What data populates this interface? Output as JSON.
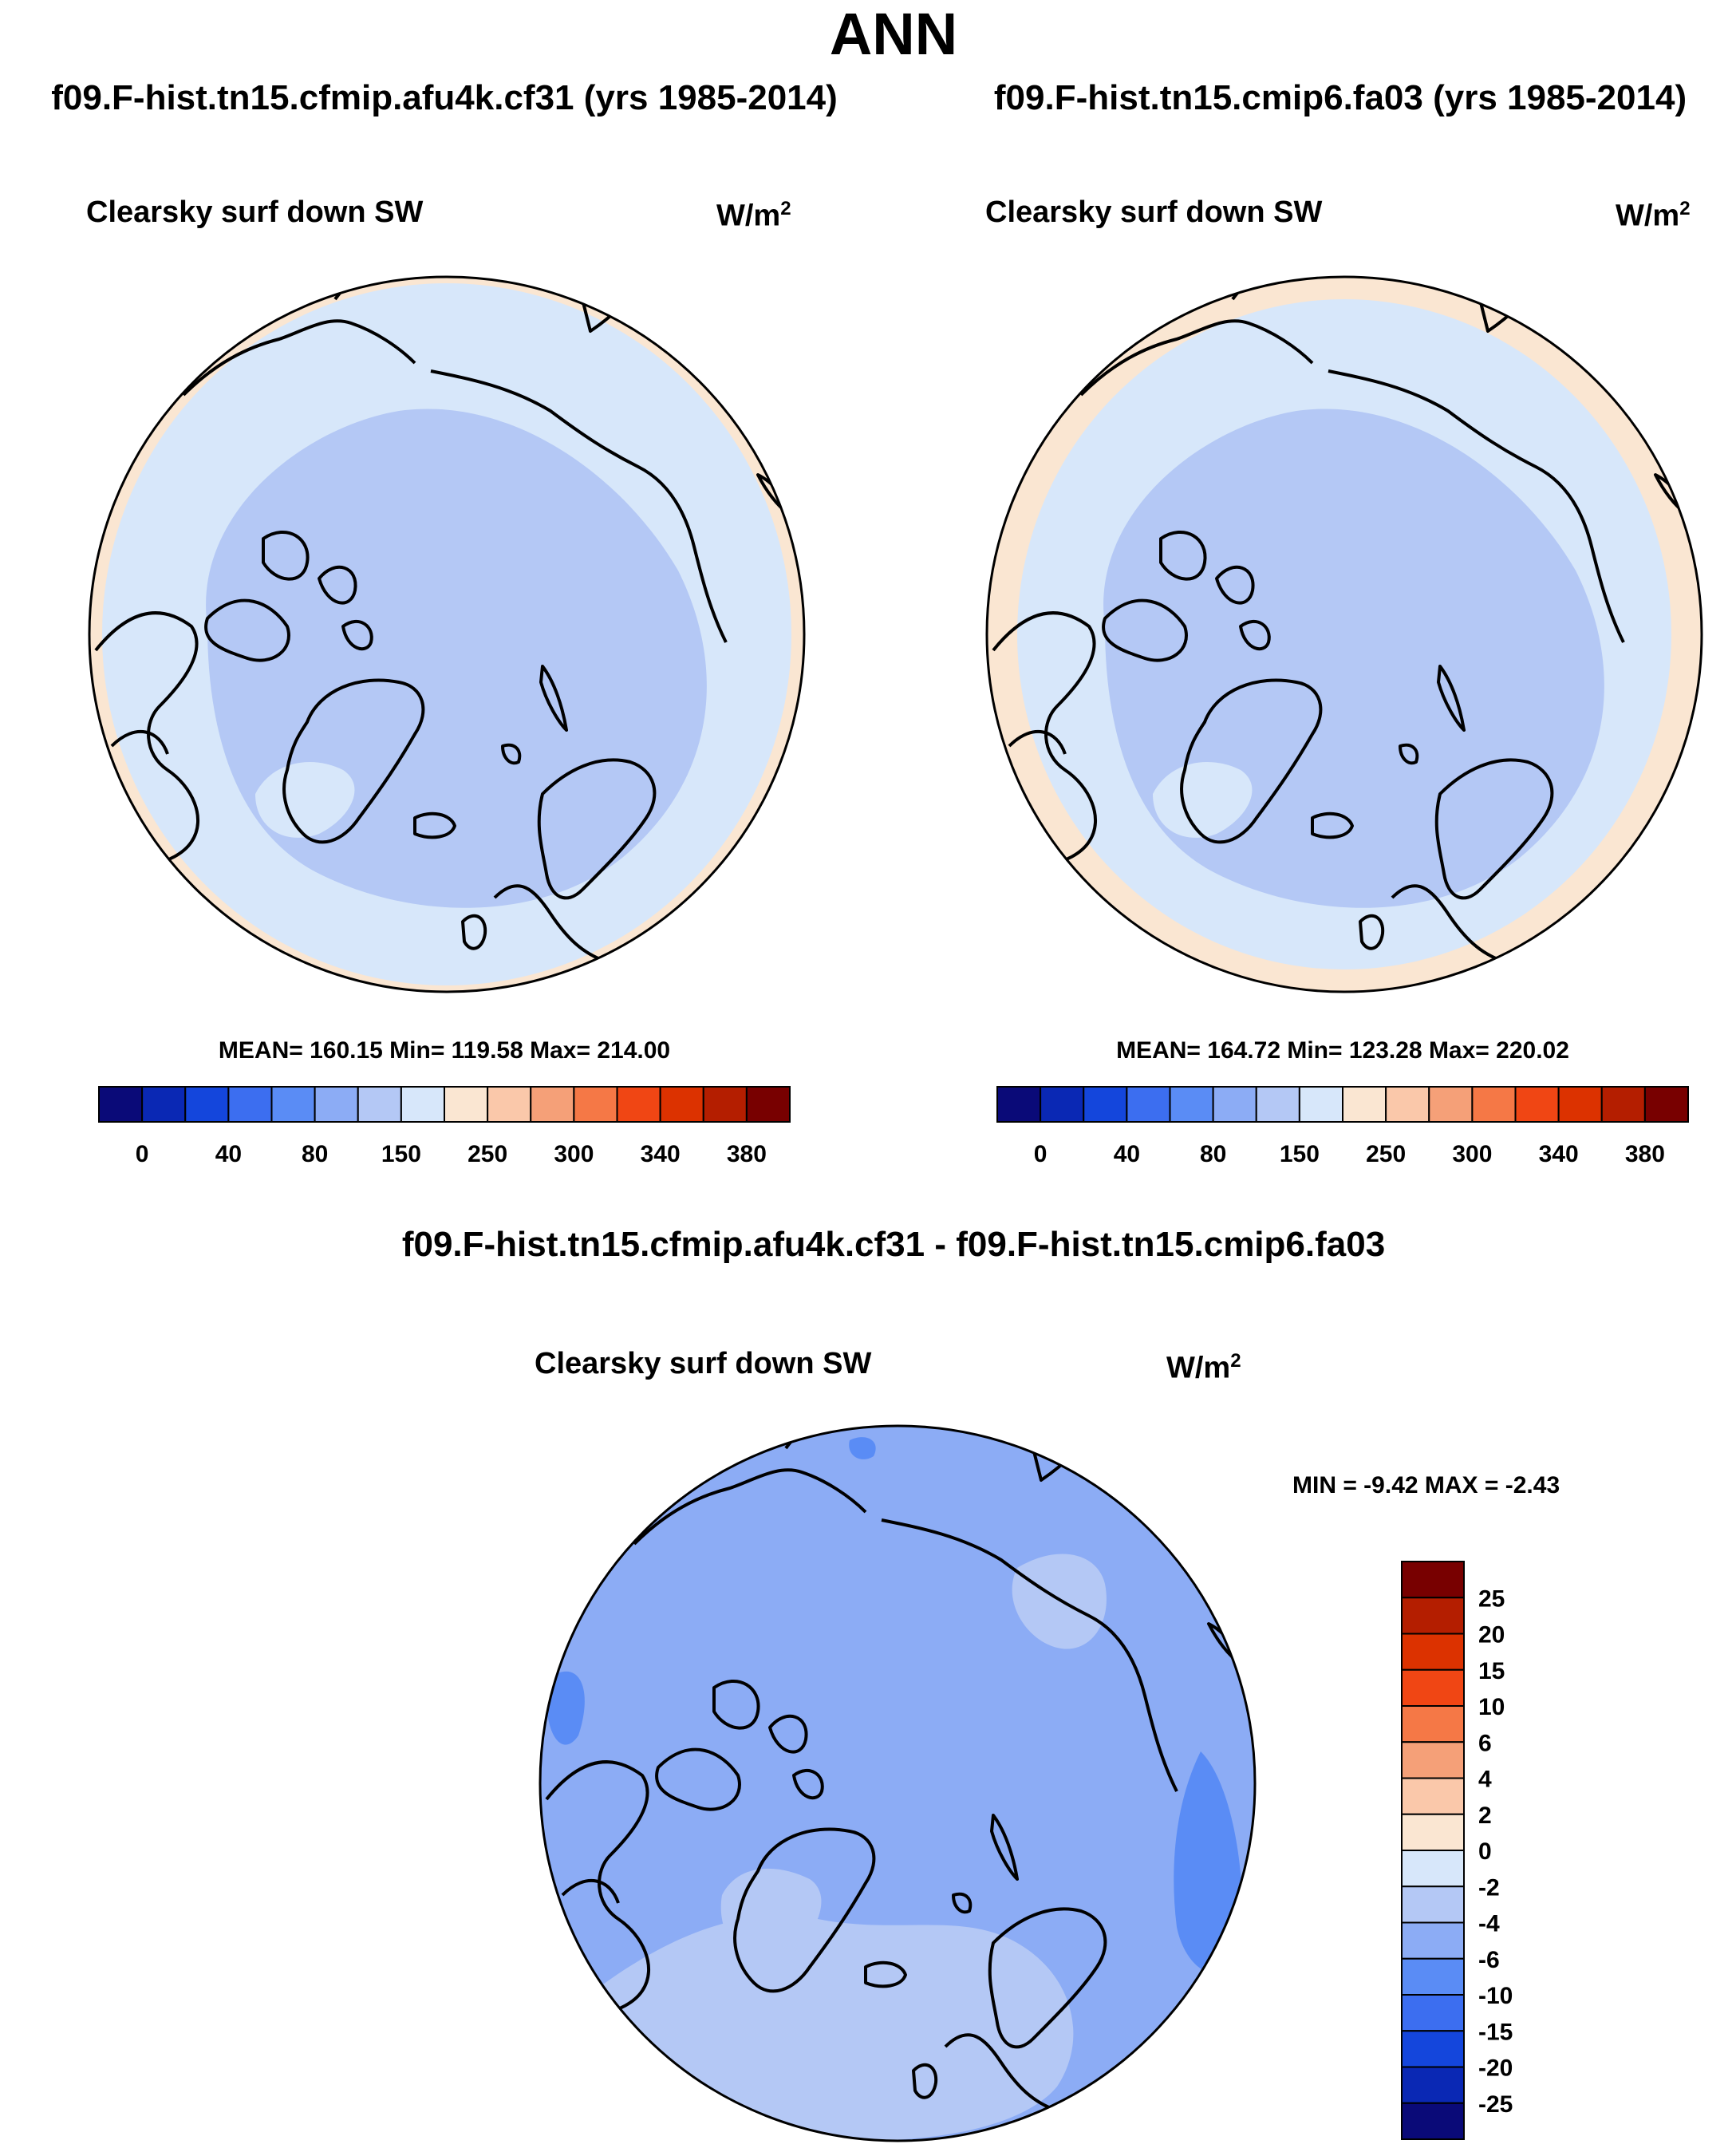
{
  "page": {
    "main_title": "ANN",
    "diff_title": "f09.F-hist.tn15.cfmip.afu4k.cf31 - f09.F-hist.tn15.cmip6.fa03"
  },
  "panels": [
    {
      "case_title": "f09.F-hist.tn15.cfmip.afu4k.cf31 (yrs 1985-2014)",
      "variable": "Clearsky surf down SW",
      "units_base": "W/m",
      "units_exp": "2",
      "stats": "MEAN= 160.15  Min= 119.58  Max= 214.00"
    },
    {
      "case_title": "f09.F-hist.tn15.cmip6.fa03 (yrs 1985-2014)",
      "variable": "Clearsky surf down SW",
      "units_base": "W/m",
      "units_exp": "2",
      "stats": "MEAN= 164.72  Min= 123.28  Max= 220.02"
    },
    {
      "variable": "Clearsky surf down SW",
      "units_base": "W/m",
      "units_exp": "2",
      "stats": "MIN =  -9.42 MAX =  -2.43"
    }
  ],
  "colors": {
    "abs_scale": [
      "#0a0a78",
      "#0a28b4",
      "#1446dc",
      "#3c6ef0",
      "#5a8cf5",
      "#8cacf5",
      "#b4c8f5",
      "#d7e7fa",
      "#fae6d2",
      "#fac8aa",
      "#f5a078",
      "#f57846",
      "#f04614",
      "#dc3200",
      "#b41e00",
      "#780000"
    ],
    "diff_scale": [
      "#0a0a78",
      "#0a28b4",
      "#1446dc",
      "#3c6ef0",
      "#5a8cf5",
      "#8cacf5",
      "#b4c8f5",
      "#d7e7fa",
      "#fae6d2",
      "#fac8aa",
      "#f5a078",
      "#f57846",
      "#f04614",
      "#dc3200",
      "#b41e00",
      "#780000"
    ]
  },
  "chart_data": [
    {
      "type": "heatmap",
      "projection": "north-polar-stereographic",
      "title": "f09.F-hist.tn15.cfmip.afu4k.cf31 (yrs 1985-2014)",
      "variable": "Clearsky surf down SW",
      "units": "W/m2",
      "levels": [
        "0",
        "40",
        "80",
        "150",
        "250",
        "300",
        "340",
        "380"
      ],
      "mean": 160.15,
      "min": 119.58,
      "max": 214.0,
      "legend": "bottom"
    },
    {
      "type": "heatmap",
      "projection": "north-polar-stereographic",
      "title": "f09.F-hist.tn15.cmip6.fa03 (yrs 1985-2014)",
      "variable": "Clearsky surf down SW",
      "units": "W/m2",
      "levels": [
        "0",
        "40",
        "80",
        "150",
        "250",
        "300",
        "340",
        "380"
      ],
      "mean": 164.72,
      "min": 123.28,
      "max": 220.02,
      "legend": "bottom"
    },
    {
      "type": "heatmap",
      "projection": "north-polar-stereographic",
      "title": "f09.F-hist.tn15.cfmip.afu4k.cf31 - f09.F-hist.tn15.cmip6.fa03",
      "variable": "Clearsky surf down SW",
      "units": "W/m2",
      "levels": [
        "25",
        "20",
        "15",
        "10",
        "6",
        "4",
        "2",
        "0",
        "-2",
        "-4",
        "-6",
        "-10",
        "-15",
        "-20",
        "-25"
      ],
      "min": -9.42,
      "max": -2.43,
      "legend": "right"
    }
  ]
}
